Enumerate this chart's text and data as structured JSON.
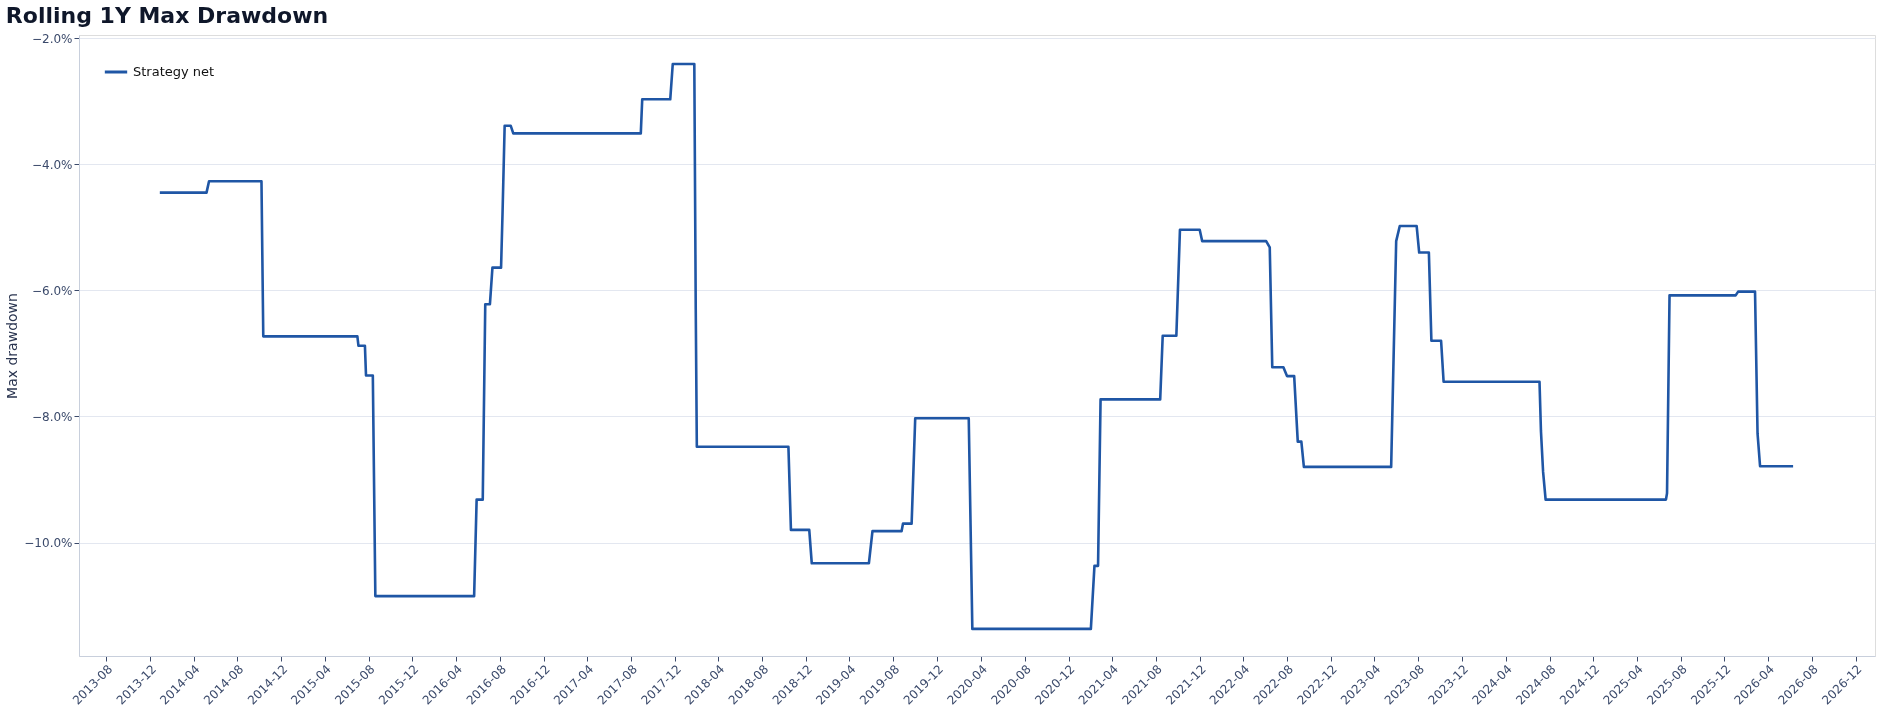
{
  "chart_data": {
    "type": "line",
    "title": "Rolling 1Y Max Drawdown",
    "ylabel": "Max drawdown",
    "x": [
      "2013-12-28",
      "2014-05-07",
      "2014-05-14",
      "2014-10-07",
      "2014-10-12",
      "2015-07-01",
      "2015-07-04",
      "2015-07-22",
      "2015-07-25",
      "2015-08-13",
      "2015-08-20",
      "2016-05-21",
      "2016-05-28",
      "2016-06-14",
      "2016-06-21",
      "2016-07-04",
      "2016-07-11",
      "2016-08-04",
      "2016-08-08",
      "2016-08-14",
      "2016-08-31",
      "2016-09-07",
      "2017-08-28",
      "2017-09-01",
      "2017-11-18",
      "2017-11-25",
      "2018-01-24",
      "2018-01-28",
      "2018-01-31",
      "2018-10-13",
      "2018-10-20",
      "2018-12-10",
      "2018-12-17",
      "2019-05-25",
      "2019-06-04",
      "2019-08-24",
      "2019-08-28",
      "2019-09-21",
      "2019-10-01",
      "2020-02-27",
      "2020-03-08",
      "2021-02-01",
      "2021-02-11",
      "2021-02-21",
      "2021-02-28",
      "2021-08-13",
      "2021-08-20",
      "2021-09-27",
      "2021-10-07",
      "2021-12-01",
      "2021-12-08",
      "2022-06-04",
      "2022-06-14",
      "2022-06-21",
      "2022-07-22",
      "2022-08-01",
      "2022-08-21",
      "2022-08-31",
      "2022-09-10",
      "2022-09-17",
      "2023-05-18",
      "2023-06-01",
      "2023-06-11",
      "2023-07-28",
      "2023-08-04",
      "2023-08-31",
      "2023-09-07",
      "2023-10-04",
      "2023-10-11",
      "2024-07-04",
      "2024-07-08",
      "2024-07-14",
      "2024-07-21",
      "2025-06-21",
      "2025-06-24",
      "2025-07-01",
      "2026-01-01",
      "2026-01-08",
      "2026-02-24",
      "2026-03-03",
      "2026-03-10",
      "2026-06-10"
    ],
    "series": [
      {
        "name": "Strategy net",
        "color": "#1f56a5",
        "values": [
          -4.45,
          -4.45,
          -4.27,
          -4.27,
          -6.73,
          -6.73,
          -6.88,
          -6.88,
          -7.35,
          -7.35,
          -10.85,
          -10.85,
          -9.32,
          -9.32,
          -6.22,
          -6.22,
          -5.64,
          -5.64,
          -4.8,
          -3.39,
          -3.39,
          -3.51,
          -3.51,
          -2.97,
          -2.97,
          -2.41,
          -2.41,
          -6.3,
          -8.48,
          -8.48,
          -9.8,
          -9.8,
          -10.33,
          -10.33,
          -9.82,
          -9.82,
          -9.7,
          -9.7,
          -8.03,
          -8.03,
          -11.37,
          -11.37,
          -10.37,
          -10.37,
          -7.73,
          -7.73,
          -6.72,
          -6.72,
          -5.04,
          -5.04,
          -5.22,
          -5.22,
          -5.32,
          -7.22,
          -7.22,
          -7.36,
          -7.36,
          -8.4,
          -8.4,
          -8.8,
          -8.8,
          -5.22,
          -4.98,
          -4.98,
          -5.4,
          -5.4,
          -6.8,
          -6.8,
          -7.45,
          -7.45,
          -8.23,
          -8.88,
          -9.32,
          -9.32,
          -9.22,
          -6.08,
          -6.08,
          -6.02,
          -6.02,
          -8.27,
          -8.79,
          -8.79
        ]
      }
    ],
    "xlim": [
      "2013-05-17",
      "2027-01-24"
    ],
    "xticks": [
      "2013-08",
      "2013-12",
      "2014-04",
      "2014-08",
      "2014-12",
      "2015-04",
      "2015-08",
      "2015-12",
      "2016-04",
      "2016-08",
      "2016-12",
      "2017-04",
      "2017-08",
      "2017-12",
      "2018-04",
      "2018-08",
      "2018-12",
      "2019-04",
      "2019-08",
      "2019-12",
      "2020-04",
      "2020-08",
      "2020-12",
      "2021-04",
      "2021-08",
      "2021-12",
      "2022-04",
      "2022-08",
      "2022-12",
      "2023-04",
      "2023-08",
      "2023-12",
      "2024-04",
      "2024-08",
      "2024-12",
      "2025-04",
      "2025-08",
      "2025-12",
      "2026-04",
      "2026-08",
      "2026-12"
    ],
    "ylim": [
      -11.8,
      -1.95
    ],
    "yticks": [
      {
        "value": -2,
        "label": "−2.0%"
      },
      {
        "value": -4,
        "label": "−4.0%"
      },
      {
        "value": -6,
        "label": "−6.0%"
      },
      {
        "value": -8,
        "label": "−8.0%"
      },
      {
        "value": -10,
        "label": "−10.0%"
      }
    ],
    "grid": "y",
    "legend": "top left",
    "line_style": "solid"
  }
}
